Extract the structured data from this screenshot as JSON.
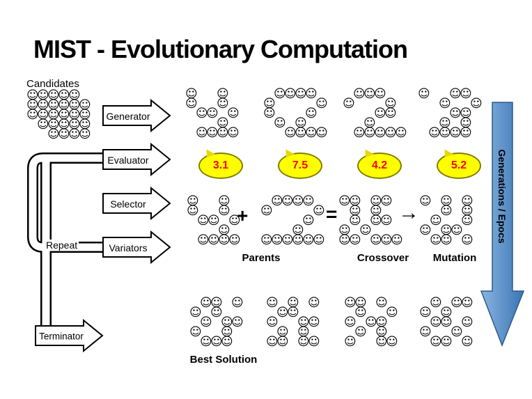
{
  "title": "MIST - Evolutionary Computation",
  "labels": {
    "candidates": "Candidates",
    "repeat": "Repeat",
    "parents": "Parents",
    "crossover": "Crossover",
    "mutation": "Mutation",
    "best_solution": "Best Solution",
    "plus": "+",
    "equals": "=",
    "arrow_right": "→"
  },
  "process_arrows": [
    {
      "label": "Generator"
    },
    {
      "label": "Evaluator"
    },
    {
      "label": "Selector"
    },
    {
      "label": "Variators"
    },
    {
      "label": "Terminator"
    }
  ],
  "scores": [
    {
      "value": "3.1"
    },
    {
      "value": "7.5"
    },
    {
      "value": "4.2"
    },
    {
      "value": "5.2"
    }
  ],
  "score_style": {
    "bubble_fill": "#ffff00",
    "bubble_border": "#7f7f00",
    "text_color": "#ff0000"
  },
  "side_arrow": {
    "label": "Generations / Epocs",
    "color_light": "#8ab4e0",
    "color_dark": "#3a75b5",
    "border": "#2a5a8c"
  },
  "smiley_glyph": "☺",
  "clusters": {
    "candidates": [
      "ooooo ",
      "oooooo",
      "oooooo",
      " ooooo",
      "  oooo"
    ],
    "top1": [
      "o  o  ",
      "o  o  ",
      " oo o ",
      "   o  ",
      " oooo "
    ],
    "top2": [
      " oooo ",
      "o    o",
      "o   o ",
      " o o  ",
      "  oooo"
    ],
    "top3": [
      " ooo  ",
      "o   o ",
      "   oo ",
      "  o   ",
      " ooooo"
    ],
    "top4": [
      "o  oo ",
      "  o  o",
      "   oo ",
      "  o o ",
      " oooo "
    ],
    "parent1": [
      "o  o  ",
      "o  o  ",
      " oo o ",
      "   o  ",
      " oooo "
    ],
    "parent2": [
      " oooo ",
      "o    o",
      "    o ",
      "   o  ",
      "oooooo"
    ],
    "crossover": [
      "oo oo ",
      " o o  ",
      " o oo ",
      "o o   ",
      "oo ooo"
    ],
    "mutation": [
      "o o o ",
      "  o o ",
      " o  o ",
      "o oo  ",
      " oo o "
    ],
    "best1": [
      " oo o ",
      "o o   ",
      " o oo ",
      "o  o  ",
      " ooo  "
    ],
    "best2": [
      "o o o ",
      " oo   ",
      "o  oo ",
      " o o  ",
      "oo oo "
    ],
    "best3": [
      "oo o  ",
      " o  o ",
      "o oo  ",
      " o o  ",
      "o  oo "
    ],
    "best4": [
      " o oo ",
      "o o   ",
      " oo o ",
      "o  o  ",
      " oo o "
    ]
  }
}
